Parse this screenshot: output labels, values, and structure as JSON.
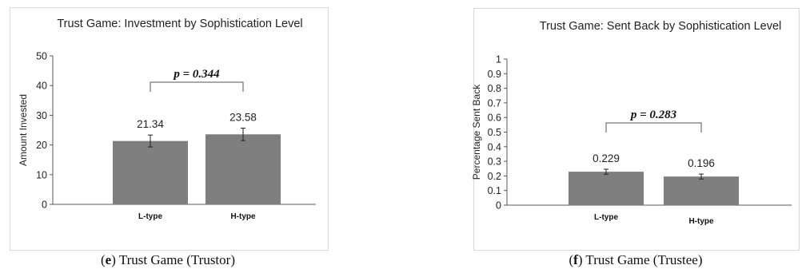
{
  "chart_data": [
    {
      "type": "bar",
      "title": "Trust Game: Investment by Sophistication Level",
      "ylabel": "Amount Invested",
      "xlabel": "",
      "categories": [
        "L-type",
        "H-type"
      ],
      "values": [
        21.34,
        23.58
      ],
      "value_labels": [
        "21.34",
        "23.58"
      ],
      "error": [
        2.0,
        2.1
      ],
      "ylim": [
        0,
        50
      ],
      "yticks": [
        0,
        10,
        20,
        30,
        40,
        50
      ],
      "ytick_labels": [
        "0",
        "10",
        "20",
        "30",
        "40",
        "50"
      ],
      "annotation": "p = 0.344",
      "caption_letter": "e",
      "caption_text": " Trust Game (Trustor)",
      "bar_color": "#7f7f7f",
      "grid": false
    },
    {
      "type": "bar",
      "title": "Trust Game: Sent Back by Sophistication Level",
      "ylabel": "Percentage Sent Back",
      "xlabel": "",
      "categories": [
        "L-type",
        "H-type"
      ],
      "values": [
        0.229,
        0.196
      ],
      "value_labels": [
        "0.229",
        "0.196"
      ],
      "error": [
        0.017,
        0.017
      ],
      "ylim": [
        0,
        1
      ],
      "yticks": [
        0,
        0.1,
        0.2,
        0.3,
        0.4,
        0.5,
        0.6,
        0.7,
        0.8,
        0.9,
        1
      ],
      "ytick_labels": [
        "0",
        "0.1",
        "0.2",
        "0.3",
        "0.4",
        "0.5",
        "0.6",
        "0.7",
        "0.8",
        "0.9",
        "1"
      ],
      "annotation": "p = 0.283",
      "caption_letter": "f",
      "caption_text": " Trust Game (Trustee)",
      "bar_color": "#7f7f7f",
      "grid": false
    }
  ]
}
